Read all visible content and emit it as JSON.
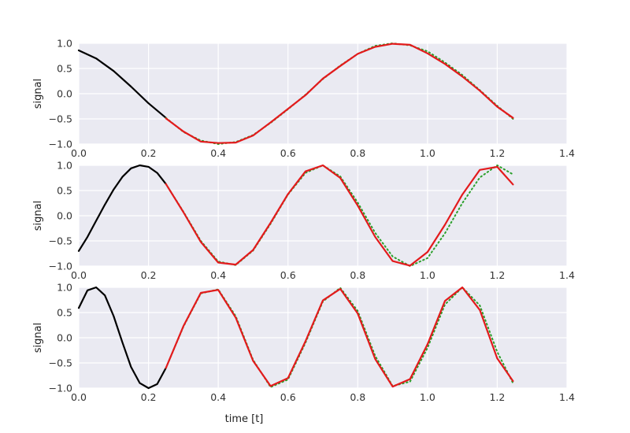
{
  "chart_data": [
    {
      "type": "line",
      "ylabel": "signal",
      "xlabel": "",
      "xlim": [
        0.0,
        1.4
      ],
      "ylim": [
        -1.0,
        1.0
      ],
      "xticks": [
        "0.0",
        "0.2",
        "0.4",
        "0.6",
        "0.8",
        "1.0",
        "1.2",
        "1.4"
      ],
      "yticks": [
        "1.0",
        "0.5",
        "0.0",
        "−0.5",
        "−1.0"
      ],
      "grid": true,
      "series": [
        {
          "style": "solid",
          "color": "#000000",
          "x": [
            0.0,
            0.05,
            0.1,
            0.15,
            0.2,
            0.25
          ],
          "y": [
            0.86,
            0.7,
            0.45,
            0.14,
            -0.19,
            -0.48
          ]
        },
        {
          "style": "dotted",
          "color": "#2ca02c",
          "x": [
            0.25,
            0.3,
            0.35,
            0.4,
            0.45,
            0.5,
            0.55,
            0.6,
            0.65,
            0.7,
            0.75,
            0.8,
            0.85,
            0.9,
            0.95,
            1.0,
            1.05,
            1.1,
            1.15,
            1.2,
            1.245
          ],
          "y": [
            -0.48,
            -0.76,
            -0.93,
            -1.0,
            -0.96,
            -0.82,
            -0.58,
            -0.31,
            -0.02,
            0.29,
            0.56,
            0.79,
            0.95,
            1.0,
            0.96,
            0.84,
            0.62,
            0.37,
            0.07,
            -0.24,
            -0.5
          ]
        },
        {
          "style": "solid",
          "color": "#e31a1c",
          "x": [
            0.25,
            0.3,
            0.35,
            0.4,
            0.45,
            0.5,
            0.55,
            0.6,
            0.65,
            0.7,
            0.75,
            0.8,
            0.85,
            0.9,
            0.95,
            1.0,
            1.05,
            1.1,
            1.15,
            1.2,
            1.245
          ],
          "y": [
            -0.49,
            -0.75,
            -0.95,
            -0.98,
            -0.97,
            -0.83,
            -0.57,
            -0.3,
            -0.03,
            0.3,
            0.55,
            0.79,
            0.93,
            0.99,
            0.97,
            0.8,
            0.59,
            0.34,
            0.06,
            -0.26,
            -0.48
          ]
        }
      ]
    },
    {
      "type": "line",
      "ylabel": "signal",
      "xlabel": "",
      "xlim": [
        0.0,
        1.4
      ],
      "ylim": [
        -1.0,
        1.0
      ],
      "xticks": [
        "0.0",
        "0.2",
        "0.4",
        "0.6",
        "0.8",
        "1.0",
        "1.2",
        "1.4"
      ],
      "yticks": [
        "1.0",
        "0.5",
        "0.0",
        "−0.5",
        "−1.0"
      ],
      "grid": true,
      "series": [
        {
          "style": "solid",
          "color": "#000000",
          "x": [
            0.0,
            0.025,
            0.05,
            0.075,
            0.1,
            0.125,
            0.15,
            0.175,
            0.2,
            0.225,
            0.25
          ],
          "y": [
            -0.7,
            -0.42,
            -0.1,
            0.22,
            0.52,
            0.77,
            0.94,
            1.0,
            0.97,
            0.85,
            0.63
          ]
        },
        {
          "style": "dotted",
          "color": "#2ca02c",
          "x": [
            0.25,
            0.3,
            0.35,
            0.4,
            0.45,
            0.5,
            0.55,
            0.6,
            0.65,
            0.7,
            0.75,
            0.8,
            0.85,
            0.9,
            0.95,
            1.0,
            1.05,
            1.1,
            1.15,
            1.2,
            1.245
          ],
          "y": [
            0.63,
            0.08,
            -0.5,
            -0.91,
            -0.98,
            -0.69,
            -0.16,
            0.42,
            0.85,
            1.0,
            0.78,
            0.26,
            -0.34,
            -0.81,
            -1.0,
            -0.84,
            -0.35,
            0.25,
            0.76,
            1.0,
            0.82
          ]
        },
        {
          "style": "solid",
          "color": "#e31a1c",
          "x": [
            0.25,
            0.3,
            0.35,
            0.4,
            0.45,
            0.5,
            0.55,
            0.6,
            0.65,
            0.7,
            0.75,
            0.8,
            0.85,
            0.9,
            0.95,
            1.0,
            1.05,
            1.1,
            1.15,
            1.2,
            1.245
          ],
          "y": [
            0.63,
            0.07,
            -0.52,
            -0.93,
            -0.97,
            -0.68,
            -0.14,
            0.43,
            0.88,
            1.0,
            0.75,
            0.2,
            -0.42,
            -0.9,
            -0.99,
            -0.72,
            -0.18,
            0.42,
            0.91,
            0.97,
            0.62
          ]
        }
      ]
    },
    {
      "type": "line",
      "ylabel": "signal",
      "xlabel": "time [t]",
      "xlim": [
        0.0,
        1.4
      ],
      "ylim": [
        -1.0,
        1.0
      ],
      "xticks": [
        "0.0",
        "0.2",
        "0.4",
        "0.6",
        "0.8",
        "1.0",
        "1.2",
        "1.4"
      ],
      "yticks": [
        "1.0",
        "0.5",
        "0.0",
        "−0.5",
        "−1.0"
      ],
      "grid": true,
      "series": [
        {
          "style": "solid",
          "color": "#000000",
          "x": [
            0.0,
            0.025,
            0.05,
            0.075,
            0.1,
            0.125,
            0.15,
            0.175,
            0.2,
            0.225,
            0.25
          ],
          "y": [
            0.59,
            0.94,
            1.0,
            0.84,
            0.43,
            -0.09,
            -0.58,
            -0.9,
            -1.0,
            -0.92,
            -0.6
          ]
        },
        {
          "style": "dotted",
          "color": "#2ca02c",
          "x": [
            0.25,
            0.3,
            0.35,
            0.4,
            0.45,
            0.5,
            0.55,
            0.6,
            0.65,
            0.7,
            0.75,
            0.8,
            0.85,
            0.9,
            0.95,
            1.0,
            1.05,
            1.1,
            1.15,
            1.2,
            1.245
          ],
          "y": [
            -0.6,
            0.22,
            0.88,
            0.96,
            0.43,
            -0.44,
            -0.98,
            -0.83,
            -0.1,
            0.72,
            0.99,
            0.53,
            -0.36,
            -0.96,
            -0.87,
            -0.2,
            0.66,
            1.0,
            0.64,
            -0.28,
            -0.9
          ]
        },
        {
          "style": "solid",
          "color": "#e31a1c",
          "x": [
            0.25,
            0.3,
            0.35,
            0.4,
            0.45,
            0.5,
            0.55,
            0.6,
            0.65,
            0.7,
            0.75,
            0.8,
            0.85,
            0.9,
            0.95,
            1.0,
            1.05,
            1.1,
            1.15,
            1.2,
            1.245
          ],
          "y": [
            -0.6,
            0.23,
            0.89,
            0.95,
            0.4,
            -0.46,
            -0.96,
            -0.8,
            -0.07,
            0.74,
            0.97,
            0.48,
            -0.42,
            -0.97,
            -0.82,
            -0.13,
            0.73,
            1.0,
            0.55,
            -0.41,
            -0.86
          ]
        }
      ]
    }
  ]
}
